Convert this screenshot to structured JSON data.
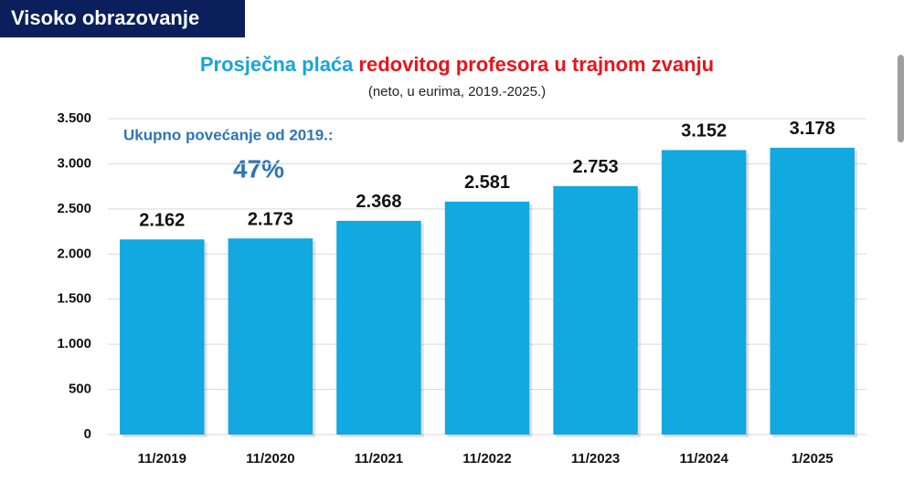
{
  "header": {
    "label": "Visoko obrazovanje"
  },
  "chart_data": {
    "type": "bar",
    "title_parts": [
      {
        "text": "Prosječna plaća",
        "color": "#1aa3dc"
      },
      {
        "text": "redovitog profesora u trajnom zvanju",
        "color": "#e8141b"
      }
    ],
    "subtitle": "(neto, u eurima, 2019.-2025.)",
    "annotations": [
      "Ukupno povećanje od 2019.:",
      "47%"
    ],
    "categories": [
      "11/2019",
      "11/2020",
      "11/2021",
      "11/2022",
      "11/2023",
      "11/2024",
      "1/2025"
    ],
    "values": [
      2162,
      2173,
      2368,
      2581,
      2753,
      3152,
      3178
    ],
    "value_labels": [
      "2.162",
      "2.173",
      "2.368",
      "2.581",
      "2.753",
      "3.152",
      "3.178"
    ],
    "color": "#12a8e0",
    "ylim": [
      0,
      3500
    ],
    "yticks": [
      0,
      500,
      {
        "value": 1000,
        "label": "1.000"
      },
      {
        "value": 1500,
        "label": "1.500"
      },
      {
        "value": 2000,
        "label": "2.000"
      },
      {
        "value": 2500,
        "label": "2.500"
      },
      {
        "value": 3000,
        "label": "3.000"
      },
      {
        "value": 3500,
        "label": "3.500"
      }
    ],
    "grid": true
  }
}
